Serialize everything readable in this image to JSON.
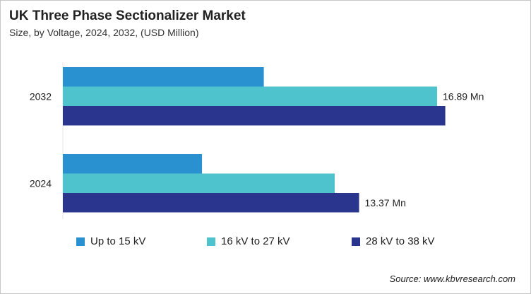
{
  "chart_data": {
    "type": "bar",
    "orientation": "horizontal",
    "title": "UK Three Phase Sectionalizer Market",
    "subtitle": "Size, by Voltage, 2024, 2032, (USD Million)",
    "categories": [
      "2032",
      "2024"
    ],
    "series": [
      {
        "name": "Up to 15 kV",
        "color": "#2a91d0",
        "values": [
          9.07,
          6.28
        ]
      },
      {
        "name": "16 kV to 27 kV",
        "color": "#4fc3cd",
        "values": [
          16.89,
          12.27
        ]
      },
      {
        "name": "28 kV to 38 kV",
        "color": "#2a368e",
        "values": [
          17.26,
          13.37
        ]
      }
    ],
    "data_labels": [
      {
        "category": "2032",
        "series": "16 kV to 27 kV",
        "text": "16.89 Mn"
      },
      {
        "category": "2024",
        "series": "28 kV to 38 kV",
        "text": "13.37 Mn"
      }
    ],
    "legend_position": "bottom",
    "grid": false,
    "source": "Source: www.kbvresearch.com"
  }
}
